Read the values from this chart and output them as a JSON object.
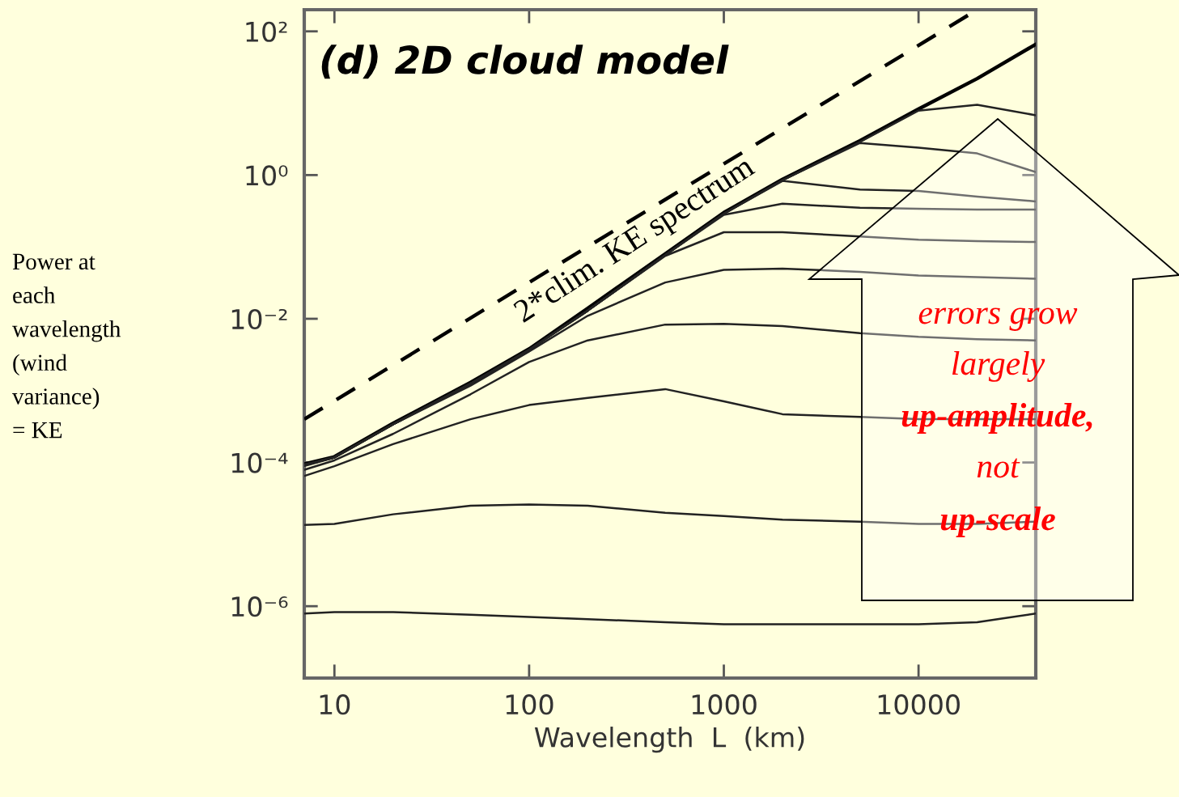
{
  "chart_data": {
    "type": "line",
    "title": "(d) 2D cloud model",
    "xlabel": "Wavelength  L  (km)",
    "ylabel": "Power at\neach\nwavelength\n(wind\nvariance)\n= KE",
    "log": "xy",
    "grid": false,
    "marker": "none",
    "x": [
      7,
      10,
      20,
      50,
      100,
      200,
      500,
      1000,
      2000,
      5000,
      10000,
      20000,
      40000
    ],
    "xlim": [
      7,
      40000
    ],
    "xticks": [
      10,
      100,
      1000,
      10000
    ],
    "ylim": [
      1e-07,
      200
    ],
    "yticks": [
      {
        "value": 100,
        "label": "10²"
      },
      {
        "value": 1,
        "label": "10⁰"
      },
      {
        "value": 0.01,
        "label": "10⁻²"
      },
      {
        "value": 0.0001,
        "label": "10⁻⁴"
      },
      {
        "value": 1e-06,
        "label": "10⁻⁶"
      }
    ],
    "series": [
      {
        "color": "#000000",
        "line_style": "dashed",
        "x": [
          7,
          20000
        ],
        "values": [
          0.0004,
          200
        ]
      },
      {
        "color": "#000000",
        "values": [
          9.5e-05,
          0.00012,
          0.00035,
          0.0013,
          0.0038,
          0.014,
          0.08,
          0.3,
          0.87,
          3,
          8.3,
          22,
          66
        ]
      },
      {
        "color": "#222222",
        "values": [
          7.9e-07,
          8.3e-07,
          8.3e-07,
          7.6e-07,
          7.1e-07,
          6.6e-07,
          6e-07,
          5.6e-07,
          5.6e-07,
          5.6e-07,
          5.6e-07,
          6e-07,
          7.9e-07
        ]
      },
      {
        "color": "#222222",
        "values": [
          1.35e-05,
          1.4e-05,
          1.9e-05,
          2.5e-05,
          2.6e-05,
          2.5e-05,
          2e-05,
          1.8e-05,
          1.6e-05,
          1.5e-05,
          1.4e-05,
          1.4e-05,
          1.5e-05
        ]
      },
      {
        "color": "#222222",
        "values": [
          6.5e-05,
          8.9e-05,
          0.00018,
          0.0004,
          0.00063,
          0.00079,
          0.00105,
          0.00071,
          0.00047,
          0.00043,
          0.0004,
          0.0004,
          0.0004
        ]
      },
      {
        "color": "#222222",
        "values": [
          7.9e-05,
          0.000107,
          0.00025,
          0.00089,
          0.0025,
          0.005,
          0.0083,
          0.0085,
          0.0079,
          0.0063,
          0.0056,
          0.0052,
          0.005
        ]
      },
      {
        "color": "#222222",
        "values": [
          8.9e-05,
          0.000117,
          0.00034,
          0.00117,
          0.0035,
          0.011,
          0.032,
          0.048,
          0.05,
          0.045,
          0.04,
          0.038,
          0.036
        ]
      },
      {
        "color": "#222222",
        "values": [
          9.3e-05,
          0.000118,
          0.00034,
          0.00125,
          0.0037,
          0.013,
          0.075,
          0.16,
          0.16,
          0.14,
          0.126,
          0.12,
          0.117
        ]
      },
      {
        "color": "#222222",
        "values": [
          9.3e-05,
          0.000118,
          0.00034,
          0.00125,
          0.0037,
          0.013,
          0.077,
          0.28,
          0.4,
          0.35,
          0.34,
          0.33,
          0.33
        ]
      },
      {
        "color": "#222222",
        "values": [
          9.3e-05,
          0.000118,
          0.00034,
          0.00125,
          0.0037,
          0.013,
          0.077,
          0.29,
          0.83,
          0.63,
          0.6,
          0.5,
          0.43
        ]
      },
      {
        "color": "#222222",
        "values": [
          9.3e-05,
          0.000118,
          0.00034,
          0.00125,
          0.0037,
          0.013,
          0.077,
          0.29,
          0.85,
          2.8,
          2.4,
          2,
          1.1
        ]
      },
      {
        "color": "#222222",
        "values": [
          9.3e-05,
          0.000118,
          0.00034,
          0.00125,
          0.0037,
          0.013,
          0.077,
          0.29,
          0.85,
          2.9,
          7.9,
          9.5,
          6.8
        ]
      }
    ],
    "annotations": [
      "2*clim. KE spectrum",
      "errors grow",
      "largely",
      "up-amplitude,",
      "not",
      "up-scale"
    ]
  }
}
